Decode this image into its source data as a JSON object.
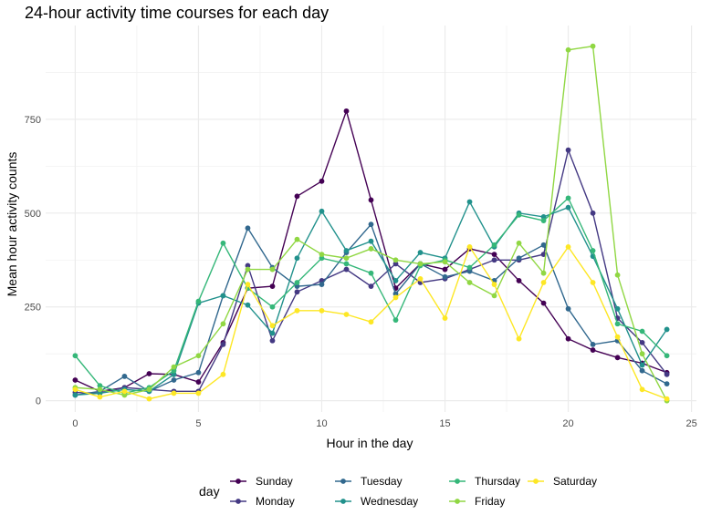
{
  "chart_data": {
    "type": "line",
    "title": "24-hour activity time courses for each day",
    "xlabel": "Hour in the day",
    "ylabel": "Mean hour activity counts",
    "xlim": [
      -1.2,
      25.2
    ],
    "ylim": [
      -30,
      1000
    ],
    "xticks": [
      0,
      5,
      10,
      15,
      20,
      25
    ],
    "yticks": [
      0,
      250,
      500,
      750
    ],
    "ytick_labels": [
      "0",
      "250",
      "500",
      "750"
    ],
    "grid": true,
    "legend": {
      "title": "day",
      "position": "bottom"
    },
    "x": [
      0,
      1,
      2,
      3,
      4,
      5,
      6,
      7,
      8,
      9,
      10,
      11,
      12,
      13,
      14,
      15,
      16,
      17,
      18,
      19,
      20,
      21,
      22,
      23,
      24
    ],
    "series": [
      {
        "name": "Sunday",
        "color": "#440154",
        "values": [
          55,
          25,
          35,
          72,
          70,
          50,
          155,
          300,
          305,
          545,
          585,
          772,
          535,
          300,
          365,
          350,
          405,
          390,
          320,
          260,
          165,
          135,
          115,
          100,
          75
        ]
      },
      {
        "name": "Monday",
        "color": "#443983",
        "values": [
          22,
          20,
          35,
          30,
          25,
          25,
          150,
          360,
          160,
          290,
          320,
          350,
          305,
          365,
          315,
          325,
          350,
          375,
          375,
          390,
          668,
          500,
          220,
          155,
          70
        ]
      },
      {
        "name": "Tuesday",
        "color": "#31688e",
        "values": [
          15,
          25,
          65,
          25,
          55,
          75,
          280,
          460,
          355,
          305,
          310,
          395,
          470,
          285,
          365,
          330,
          345,
          320,
          380,
          415,
          245,
          150,
          160,
          80,
          45
        ]
      },
      {
        "name": "Wednesday",
        "color": "#21918c",
        "values": [
          15,
          20,
          30,
          25,
          70,
          260,
          280,
          255,
          180,
          380,
          505,
          400,
          425,
          320,
          395,
          380,
          530,
          410,
          500,
          490,
          515,
          385,
          245,
          95,
          190
        ]
      },
      {
        "name": "Thursday",
        "color": "#35b779",
        "values": [
          120,
          40,
          20,
          35,
          80,
          265,
          420,
          300,
          250,
          315,
          380,
          365,
          340,
          215,
          360,
          375,
          355,
          415,
          495,
          480,
          540,
          400,
          205,
          185,
          120
        ]
      },
      {
        "name": "Friday",
        "color": "#90d743",
        "values": [
          35,
          30,
          15,
          30,
          90,
          120,
          205,
          350,
          350,
          430,
          390,
          380,
          405,
          375,
          365,
          370,
          315,
          280,
          420,
          340,
          935,
          945,
          335,
          125,
          0
        ]
      },
      {
        "name": "Saturday",
        "color": "#fde725",
        "values": [
          30,
          10,
          25,
          5,
          20,
          20,
          70,
          310,
          200,
          240,
          240,
          230,
          210,
          275,
          325,
          220,
          410,
          310,
          165,
          315,
          410,
          315,
          170,
          30,
          5
        ]
      }
    ]
  }
}
